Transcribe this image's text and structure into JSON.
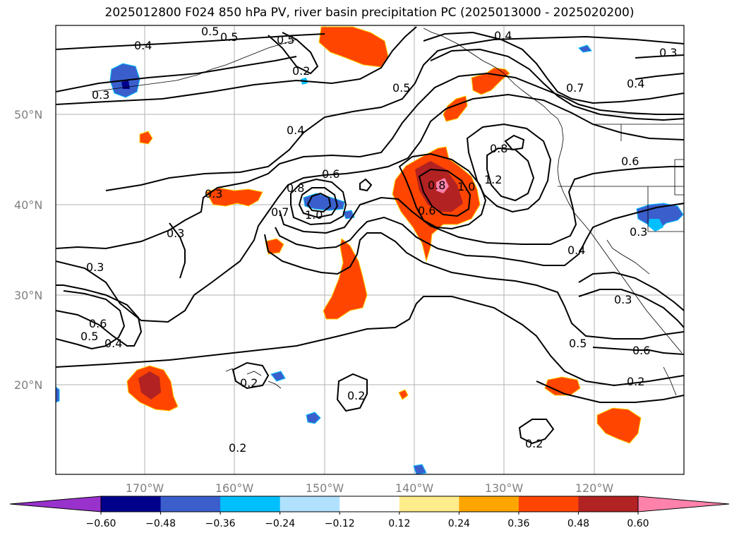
{
  "title": "2025012800 F024 850 hPa PV, river basin precipitation PC (2025013000 - 2025020200)",
  "lat_labels": [
    "50°N",
    "40°N",
    "30°N",
    "20°N"
  ],
  "lon_labels": [
    "170°W",
    "160°W",
    "150°W",
    "140°W",
    "130°W",
    "120°W"
  ],
  "contour_labels": [
    "0.4",
    "0.5",
    "0.5",
    "0.5",
    "0.2",
    "0.4",
    "0.3",
    "0.3",
    "0.7",
    "0.4",
    "0.3",
    "0.4",
    "0.8",
    "0.5",
    "0.6",
    "0.8",
    "1.0",
    "1.2",
    "0.6",
    "0.8",
    "1.0",
    "0.7",
    "0.3",
    "0.6",
    "0.3",
    "0.3",
    "0.5",
    "0.6",
    "0.4",
    "0.2",
    "0.2",
    "0.2",
    "0.5",
    "0.6",
    "0.2",
    "0.4",
    "0.3",
    "0.2"
  ],
  "colorbar": {
    "ticks": [
      "−0.60",
      "−0.48",
      "−0.36",
      "−0.24",
      "−0.12",
      "0.12",
      "0.24",
      "0.36",
      "0.48",
      "0.60"
    ],
    "colors": [
      "#9932CC",
      "#00008B",
      "#3A5FCD",
      "#00BFFF",
      "#B0E2FF",
      "#FFFFFF",
      "#FFEC8B",
      "#FFA500",
      "#FF4500",
      "#B22222",
      "#FF82AB"
    ]
  },
  "colors": {
    "contour": "#000000",
    "grid": "#808080",
    "coast": "#000000"
  }
}
